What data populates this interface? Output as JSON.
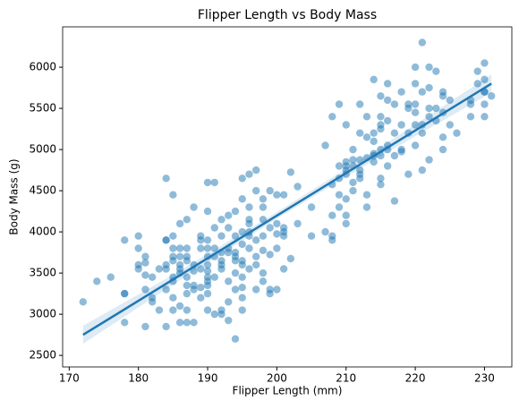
{
  "chart_data": {
    "type": "scatter",
    "title": "Flipper Length vs Body Mass",
    "x_label": "Flipper Length (mm)",
    "y_label": "Body Mass (g)",
    "color": "#1f77b4",
    "x": [
      172,
      174,
      176,
      178,
      178,
      178,
      178,
      180,
      180,
      180,
      180,
      181,
      181,
      181,
      181,
      181,
      182,
      182,
      182,
      183,
      183,
      184,
      184,
      184,
      184,
      184,
      184,
      184,
      185,
      185,
      185,
      185,
      185,
      185,
      185,
      185,
      185,
      186,
      186,
      186,
      186,
      186,
      186,
      186,
      186,
      187,
      187,
      187,
      187,
      187,
      187,
      187,
      187,
      187,
      188,
      188,
      188,
      188,
      188,
      188,
      189,
      189,
      189,
      189,
      189,
      189,
      190,
      190,
      190,
      190,
      190,
      190,
      190,
      190,
      190,
      190,
      190,
      190,
      191,
      191,
      191,
      191,
      191,
      191,
      192,
      192,
      192,
      192,
      192,
      192,
      192,
      192,
      193,
      193,
      193,
      193,
      193,
      193,
      193,
      194,
      194,
      194,
      194,
      194,
      194,
      194,
      194,
      195,
      195,
      195,
      195,
      195,
      195,
      195,
      195,
      195,
      195,
      196,
      196,
      196,
      196,
      196,
      196,
      196,
      196,
      197,
      197,
      197,
      197,
      197,
      197,
      198,
      198,
      198,
      198,
      198,
      198,
      198,
      199,
      199,
      199,
      199,
      199,
      200,
      200,
      200,
      200,
      200,
      201,
      201,
      201,
      201,
      201,
      202,
      202,
      203,
      203,
      205,
      205,
      207,
      207,
      208,
      208,
      208,
      208,
      208,
      209,
      209,
      209,
      209,
      209,
      210,
      210,
      210,
      210,
      210,
      210,
      210,
      210,
      211,
      211,
      211,
      211,
      211,
      212,
      212,
      212,
      212,
      212,
      212,
      213,
      213,
      213,
      213,
      213,
      214,
      214,
      214,
      214,
      214,
      214,
      215,
      215,
      215,
      215,
      215,
      215,
      215,
      215,
      216,
      216,
      216,
      216,
      216,
      216,
      217,
      217,
      217,
      217,
      218,
      218,
      218,
      218,
      219,
      219,
      219,
      219,
      220,
      220,
      220,
      220,
      220,
      220,
      221,
      221,
      221,
      221,
      221,
      222,
      222,
      222,
      222,
      222,
      223,
      223,
      223,
      224,
      224,
      224,
      224,
      224,
      225,
      225,
      226,
      228,
      228,
      228,
      229,
      229,
      230,
      230,
      230,
      230,
      230,
      230,
      231
    ],
    "y": [
      3150,
      3400,
      3450,
      3250,
      3900,
      2900,
      3250,
      3950,
      3600,
      3550,
      3800,
      3625,
      3700,
      3475,
      2850,
      3300,
      3200,
      3450,
      3150,
      3550,
      3050,
      3900,
      3900,
      3300,
      2850,
      4650,
      3550,
      3600,
      3700,
      3650,
      3450,
      3050,
      3200,
      3400,
      4450,
      3800,
      3950,
      3800,
      3550,
      3100,
      2900,
      3500,
      3700,
      3600,
      4100,
      3800,
      3050,
      3350,
      3450,
      3650,
      3700,
      2900,
      4150,
      3250,
      3600,
      3300,
      4300,
      2900,
      3350,
      3525,
      3950,
      3800,
      3200,
      3325,
      3900,
      3550,
      3700,
      3600,
      3450,
      3800,
      4250,
      4600,
      3050,
      3900,
      3250,
      3350,
      3525,
      3400,
      3800,
      3700,
      3000,
      4600,
      4050,
      3450,
      3550,
      3950,
      3050,
      4150,
      3750,
      3650,
      3000,
      3600,
      3750,
      4200,
      3400,
      2925,
      3800,
      3150,
      4050,
      3700,
      3500,
      3650,
      3950,
      4250,
      2700,
      3300,
      3750,
      4000,
      3650,
      4650,
      4400,
      3850,
      3600,
      3325,
      3450,
      3200,
      3050,
      4300,
      4000,
      4150,
      3550,
      4700,
      3950,
      4100,
      3800,
      4500,
      3600,
      3300,
      4750,
      3900,
      3700,
      4150,
      3775,
      3400,
      3950,
      4400,
      3500,
      4300,
      4500,
      3725,
      3250,
      4050,
      3300,
      4450,
      3800,
      3975,
      3300,
      4100,
      4000,
      4050,
      3550,
      3950,
      4450,
      3675,
      4725,
      4100,
      4550,
      4300,
      3950,
      5050,
      4000,
      4575,
      4200,
      5400,
      3950,
      3900,
      4650,
      4450,
      5550,
      4800,
      4300,
      4400,
      4800,
      4700,
      5300,
      4200,
      4750,
      4850,
      4100,
      5000,
      4800,
      4875,
      4600,
      4500,
      5200,
      5550,
      4750,
      4700,
      4875,
      4650,
      4300,
      5400,
      4900,
      5150,
      4450,
      5850,
      5100,
      4925,
      4850,
      4950,
      5200,
      5650,
      4575,
      5000,
      5300,
      5400,
      4925,
      5250,
      4650,
      5050,
      5000,
      5800,
      4800,
      5350,
      5600,
      4375,
      5550,
      5200,
      4925,
      5700,
      5000,
      5300,
      4975,
      5200,
      5500,
      4700,
      5550,
      5800,
      5050,
      6000,
      5450,
      5550,
      5300,
      6300,
      5700,
      5300,
      4750,
      5200,
      6000,
      5500,
      5400,
      5750,
      4875,
      5950,
      5500,
      5350,
      5650,
      5000,
      5450,
      5150,
      5700,
      5300,
      5600,
      5200,
      5400,
      5600,
      5550,
      5800,
      5950,
      6050,
      5700,
      5550,
      5400,
      5700,
      5850,
      5650
    ],
    "regression": {
      "x": [
        172,
        185,
        200,
        215,
        231
      ],
      "y": [
        2750,
        3422,
        4197,
        4973,
        5800
      ],
      "ci_low": [
        2640,
        3360,
        4160,
        4920,
        5690
      ],
      "ci_high": [
        2860,
        3480,
        4240,
        5030,
        5910
      ]
    },
    "xlim": [
      169.05,
      233.95
    ],
    "ylim": [
      2360,
      6490
    ],
    "xticks": [
      170,
      180,
      190,
      200,
      210,
      220,
      230
    ],
    "yticks": [
      2500,
      3000,
      3500,
      4000,
      4500,
      5000,
      5500,
      6000
    ]
  }
}
